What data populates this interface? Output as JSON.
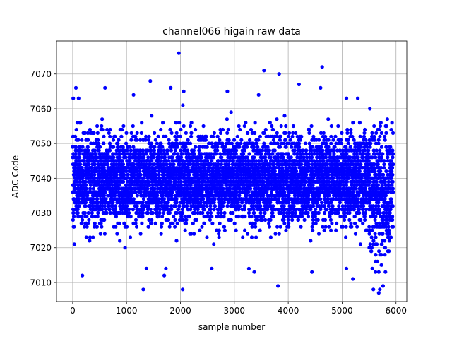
{
  "chart_data": {
    "type": "scatter",
    "title": "channel066 higain raw data",
    "xlabel": "sample number",
    "ylabel": "ADC Code",
    "xlim": [
      -300,
      6200
    ],
    "ylim": [
      7004.5,
      7079.5
    ],
    "xticks": [
      0,
      1000,
      2000,
      3000,
      4000,
      5000,
      6000
    ],
    "yticks": [
      7010,
      7020,
      7030,
      7040,
      7050,
      7060,
      7070
    ],
    "grid": true,
    "marker_color": "#0000ff",
    "n_samples": 5950,
    "sample_step": 1,
    "series": [
      {
        "marker": "dot",
        "color": "#0000ff",
        "typical_range": [
          7020,
          7057
        ],
        "center": 7040,
        "outliers": [
          {
            "x": 1970,
            "y": 7076
          },
          {
            "x": 4630,
            "y": 7072
          },
          {
            "x": 3550,
            "y": 7071
          },
          {
            "x": 3830,
            "y": 7070
          },
          {
            "x": 1440,
            "y": 7068
          },
          {
            "x": 4200,
            "y": 7067
          },
          {
            "x": 60,
            "y": 7066
          },
          {
            "x": 600,
            "y": 7066
          },
          {
            "x": 1820,
            "y": 7066
          },
          {
            "x": 2060,
            "y": 7065
          },
          {
            "x": 2870,
            "y": 7065
          },
          {
            "x": 4600,
            "y": 7066
          },
          {
            "x": 10,
            "y": 7063
          },
          {
            "x": 110,
            "y": 7063
          },
          {
            "x": 1130,
            "y": 7064
          },
          {
            "x": 3450,
            "y": 7064
          },
          {
            "x": 5080,
            "y": 7063
          },
          {
            "x": 5290,
            "y": 7063
          },
          {
            "x": 1310,
            "y": 7008
          },
          {
            "x": 2040,
            "y": 7008
          },
          {
            "x": 5580,
            "y": 7008
          },
          {
            "x": 5680,
            "y": 7007
          },
          {
            "x": 5700,
            "y": 7008
          },
          {
            "x": 3810,
            "y": 7009
          },
          {
            "x": 5760,
            "y": 7009
          },
          {
            "x": 5200,
            "y": 7011
          },
          {
            "x": 180,
            "y": 7012
          },
          {
            "x": 1700,
            "y": 7012
          },
          {
            "x": 3370,
            "y": 7013
          },
          {
            "x": 4440,
            "y": 7013
          },
          {
            "x": 5620,
            "y": 7013
          },
          {
            "x": 1370,
            "y": 7014
          },
          {
            "x": 2580,
            "y": 7014
          },
          {
            "x": 3270,
            "y": 7014
          },
          {
            "x": 5080,
            "y": 7014
          },
          {
            "x": 1730,
            "y": 7014
          },
          {
            "x": 5730,
            "y": 7015
          },
          {
            "x": 5680,
            "y": 7013
          },
          {
            "x": 5560,
            "y": 7014
          },
          {
            "x": 5620,
            "y": 7016
          }
        ]
      }
    ]
  }
}
